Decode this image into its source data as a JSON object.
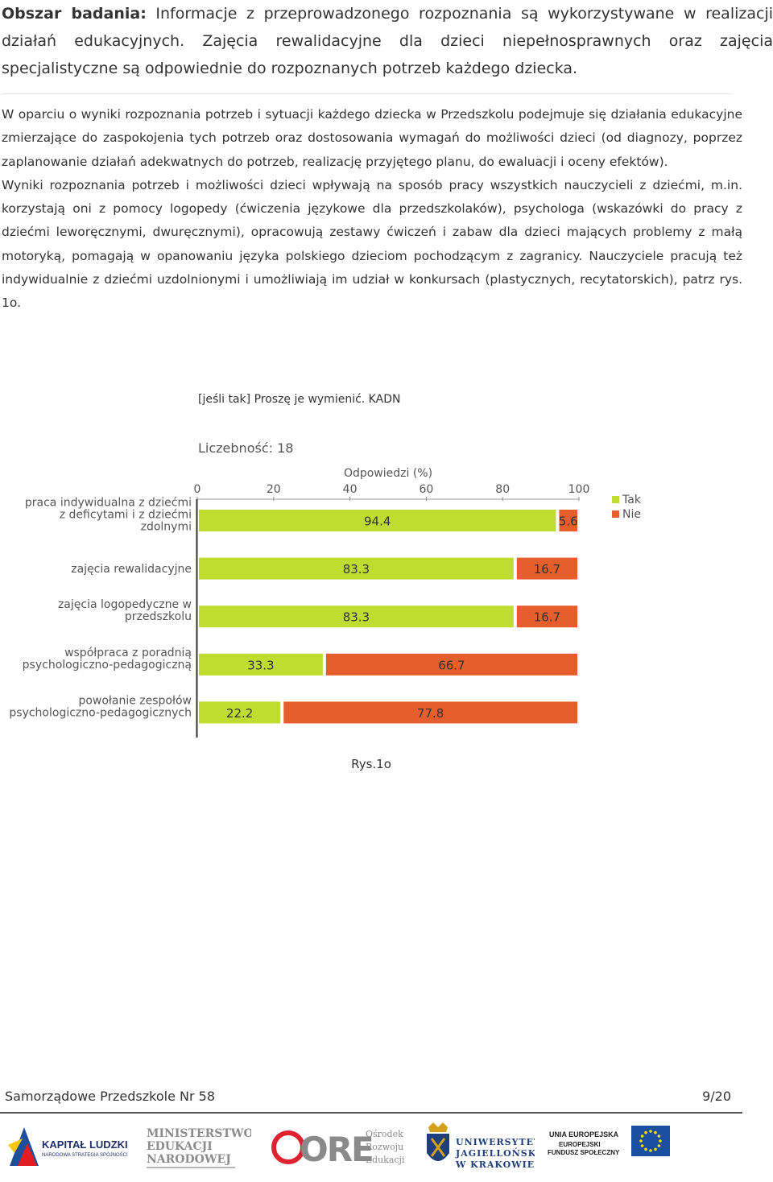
{
  "header": {
    "label": "Obszar badania:",
    "text": "Informacje z przeprowadzonego rozpoznania są wykorzystywane w realizacji działań edukacyjnych. Zajęcia rewalidacyjne dla dzieci niepełnosprawnych oraz zajęcia specjalistyczne są odpowiednie do rozpoznanych potrzeb każdego dziecka."
  },
  "body": {
    "paragraph1": "W oparciu o wyniki rozpoznania potrzeb i sytuacji każdego dziecka w Przedszkolu podejmuje się działania edukacyjne zmierzające do zaspokojenia tych potrzeb oraz dostosowania wymagań do możliwości dzieci (od diagnozy, poprzez zaplanowanie działań adekwatnych do potrzeb, realizację przyjętego planu, do ewaluacji i oceny efektów).",
    "paragraph2": "Wyniki rozpoznania potrzeb i możliwości dzieci wpływają na sposób pracy wszystkich nauczycieli z dziećmi, m.in. korzystają oni z pomocy logopedy (ćwiczenia językowe dla przedszkolaków), psychologa (wskazówki do pracy z dziećmi leworęcznymi, dwuręcznymi), opracowują zestawy ćwiczeń i zabaw dla dzieci mających problemy z małą motoryką, pomagają w opanowaniu języka polskiego dzieciom pochodzącym z zagranicy. Nauczyciele pracują też indywidualnie z dziećmi uzdolnionymi i umożliwiają im udział w konkursach (plastycznych, recytatorskich), patrz rys. 1o."
  },
  "chart_data": {
    "type": "bar",
    "orientation": "horizontal-stacked",
    "title": "[jeśli tak] Proszę je wymienić. KADN",
    "subtitle": "Liczebność: 18",
    "xlabel": "Odpowiedzi (%)",
    "xlim": [
      0,
      100
    ],
    "xticks": [
      "0",
      "20",
      "40",
      "60",
      "80",
      "100"
    ],
    "categories": [
      [
        "praca indywidualna z dziećmi",
        "z deficytami i z dziećmi",
        "zdolnymi"
      ],
      [
        "zajęcia rewalidacyjne"
      ],
      [
        "zajęcia logopedyczne w",
        "przedszkolu"
      ],
      [
        "współpraca z poradnią",
        "psychologiczno-pedagogiczną"
      ],
      [
        "powołanie zespołów",
        "psychologiczno-pedagogicznych"
      ]
    ],
    "series": [
      {
        "name": "Tak",
        "color": "#bfdd2f",
        "values": [
          94.4,
          83.3,
          83.3,
          33.3,
          22.2
        ]
      },
      {
        "name": "Nie",
        "color": "#e55e2c",
        "values": [
          5.6,
          16.7,
          16.7,
          66.7,
          77.8
        ]
      }
    ],
    "legend": "top-right"
  },
  "caption": "Rys.1o",
  "footer": {
    "left": "Samorządowe Przedszkole Nr 58",
    "right": "9/20"
  },
  "logos": {
    "kl_line1": "KAPITAŁ LUDZKI",
    "kl_line2": "NARODOWA STRATEGIA SPÓJNOŚCI",
    "men_line1": "MINISTERSTWO",
    "men_line2": "EDUKACJI",
    "men_line3": "NARODOWEJ",
    "ore_mark": "ORE",
    "ore_line1": "Ośrodek",
    "ore_line2": "Rozwoju",
    "ore_line3": "Edukacji",
    "uj_line1": "UNIWERSYTET",
    "uj_line2": "JAGIELLOŃSKI",
    "uj_line3": "W KRAKOWIE",
    "ue_line1": "UNIA EUROPEJSKA",
    "ue_line2": "EUROPEJSKI",
    "ue_line3": "FUNDUSZ SPOŁECZNY"
  }
}
